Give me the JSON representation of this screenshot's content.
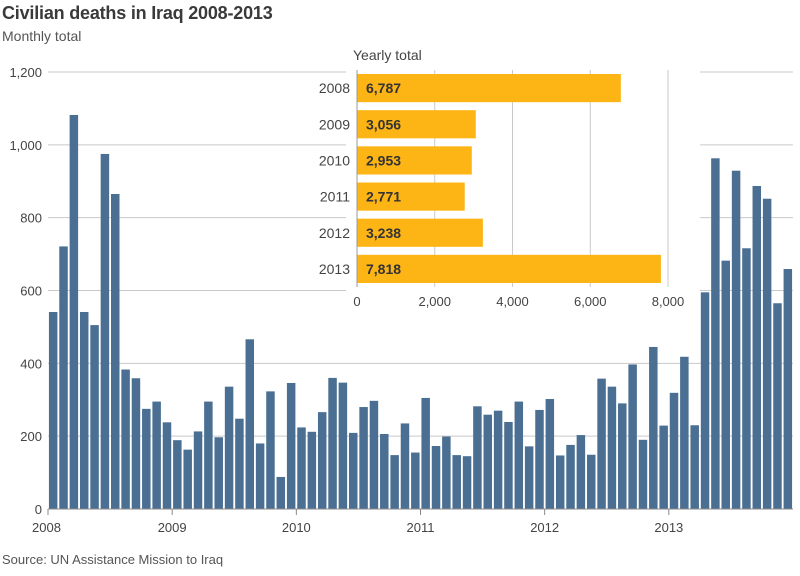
{
  "title": "Civilian deaths in Iraq 2008-2013",
  "subtitle": "Monthly total",
  "source": "Source: UN Assistance Mission to Iraq",
  "colors": {
    "monthly_bar": "#4a6f92",
    "yearly_bar": "#fdb515",
    "grid": "#c9c9c9",
    "axis_text": "#444444"
  },
  "chart_data": [
    {
      "type": "bar",
      "title": "",
      "subtitle": "Monthly total",
      "ylim": [
        0,
        1200
      ],
      "yticks": [
        0,
        200,
        400,
        600,
        800,
        1000,
        1200
      ],
      "ytick_labels": [
        "0",
        "200",
        "400",
        "600",
        "800",
        "1,000",
        "1,200"
      ],
      "xtick_labels": [
        "2008",
        "2009",
        "2010",
        "2011",
        "2012",
        "2013"
      ],
      "grid": true,
      "series": [
        {
          "values": [
            541,
            721,
            1082,
            541,
            505,
            975,
            865,
            383,
            359,
            275,
            295,
            238,
            189,
            163,
            213,
            295,
            197,
            336,
            248,
            466,
            180,
            323,
            88,
            346,
            224,
            212,
            266,
            360,
            347,
            209,
            280,
            297,
            206,
            148,
            235,
            155,
            305,
            173,
            199,
            148,
            145,
            282,
            259,
            270,
            239,
            295,
            172,
            272,
            302,
            147,
            176,
            203,
            149,
            358,
            336,
            290,
            397,
            190,
            445,
            229,
            319,
            418,
            230,
            595,
            963,
            682,
            929,
            716,
            887,
            852,
            565,
            659
          ]
        }
      ]
    },
    {
      "type": "bar",
      "orientation": "horizontal",
      "title": "Yearly total",
      "categories": [
        "2008",
        "2009",
        "2010",
        "2011",
        "2012",
        "2013"
      ],
      "values": [
        6787,
        3056,
        2953,
        2771,
        3238,
        7818
      ],
      "value_labels": [
        "6,787",
        "3,056",
        "2,953",
        "2,771",
        "3,238",
        "7,818"
      ],
      "xlim": [
        0,
        8000
      ],
      "xticks": [
        0,
        2000,
        4000,
        6000,
        8000
      ],
      "xtick_labels": [
        "0",
        "2,000",
        "4,000",
        "6,000",
        "8,000"
      ],
      "grid": true
    }
  ]
}
